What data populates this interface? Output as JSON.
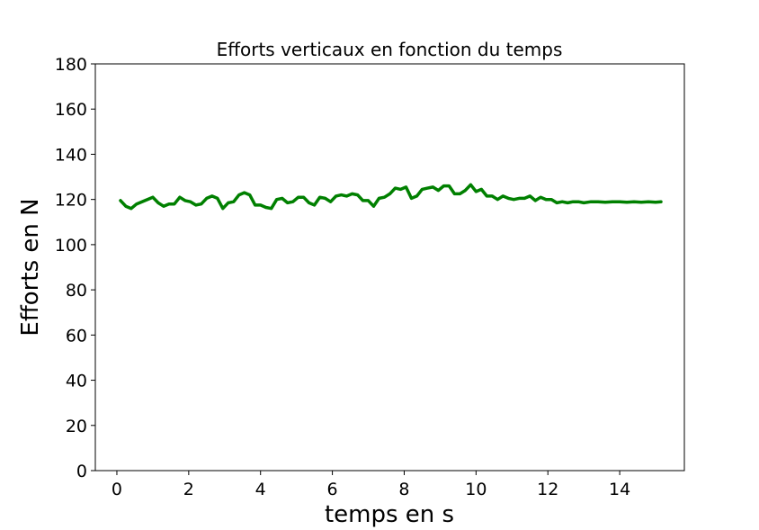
{
  "chart_data": {
    "type": "line",
    "title": "Efforts verticaux en fonction du temps",
    "xlabel": "temps en s",
    "ylabel": "Efforts en N",
    "xlim": [
      -0.6,
      15.8
    ],
    "ylim": [
      0,
      180
    ],
    "xticks": [
      0,
      2,
      4,
      6,
      8,
      10,
      12,
      14
    ],
    "yticks": [
      0,
      20,
      40,
      60,
      80,
      100,
      120,
      140,
      160,
      180
    ],
    "grid": false,
    "legend": "none",
    "series": [
      {
        "color": "#008000",
        "x": [
          0.1,
          0.25,
          0.4,
          0.55,
          0.7,
          0.85,
          1.0,
          1.15,
          1.3,
          1.45,
          1.6,
          1.75,
          1.9,
          2.05,
          2.2,
          2.35,
          2.5,
          2.65,
          2.8,
          2.95,
          3.1,
          3.25,
          3.4,
          3.55,
          3.7,
          3.85,
          4.0,
          4.15,
          4.3,
          4.45,
          4.6,
          4.75,
          4.9,
          5.05,
          5.2,
          5.35,
          5.5,
          5.65,
          5.8,
          5.95,
          6.1,
          6.25,
          6.4,
          6.55,
          6.7,
          6.85,
          7.0,
          7.15,
          7.3,
          7.45,
          7.6,
          7.75,
          7.9,
          8.05,
          8.2,
          8.35,
          8.5,
          8.65,
          8.8,
          8.95,
          9.1,
          9.25,
          9.4,
          9.55,
          9.7,
          9.85,
          10.0,
          10.15,
          10.3,
          10.45,
          10.6,
          10.75,
          10.9,
          11.05,
          11.2,
          11.35,
          11.5,
          11.65,
          11.8,
          11.95,
          12.1,
          12.25,
          12.4,
          12.55,
          12.7,
          12.85,
          13.0,
          13.2,
          13.4,
          13.6,
          13.8,
          14.0,
          14.2,
          14.4,
          14.6,
          14.8,
          15.0,
          15.15
        ],
        "y": [
          119.5,
          117.0,
          116.0,
          118.0,
          119.0,
          120.0,
          121.0,
          118.5,
          117.0,
          118.0,
          118.0,
          121.0,
          119.5,
          119.0,
          117.5,
          118.0,
          120.5,
          121.5,
          120.5,
          116.0,
          118.5,
          119.0,
          122.0,
          123.0,
          122.0,
          117.5,
          117.5,
          116.5,
          116.0,
          120.0,
          120.5,
          118.5,
          119.0,
          121.0,
          121.0,
          118.5,
          117.5,
          121.0,
          120.5,
          119.0,
          121.5,
          122.0,
          121.5,
          122.5,
          122.0,
          119.5,
          119.5,
          117.0,
          120.5,
          121.0,
          122.5,
          125.0,
          124.5,
          125.5,
          120.5,
          121.5,
          124.5,
          125.0,
          125.5,
          124.0,
          126.0,
          126.0,
          122.5,
          122.5,
          124.0,
          126.5,
          123.5,
          124.5,
          121.5,
          121.5,
          120.0,
          121.5,
          120.5,
          120.0,
          120.5,
          120.5,
          121.5,
          119.5,
          121.0,
          120.0,
          120.0,
          118.5,
          119.0,
          118.5,
          119.0,
          119.0,
          118.5,
          119.0,
          119.0,
          118.8,
          119.0,
          119.0,
          118.8,
          119.0,
          118.8,
          119.0,
          118.8,
          119.0
        ]
      }
    ]
  }
}
